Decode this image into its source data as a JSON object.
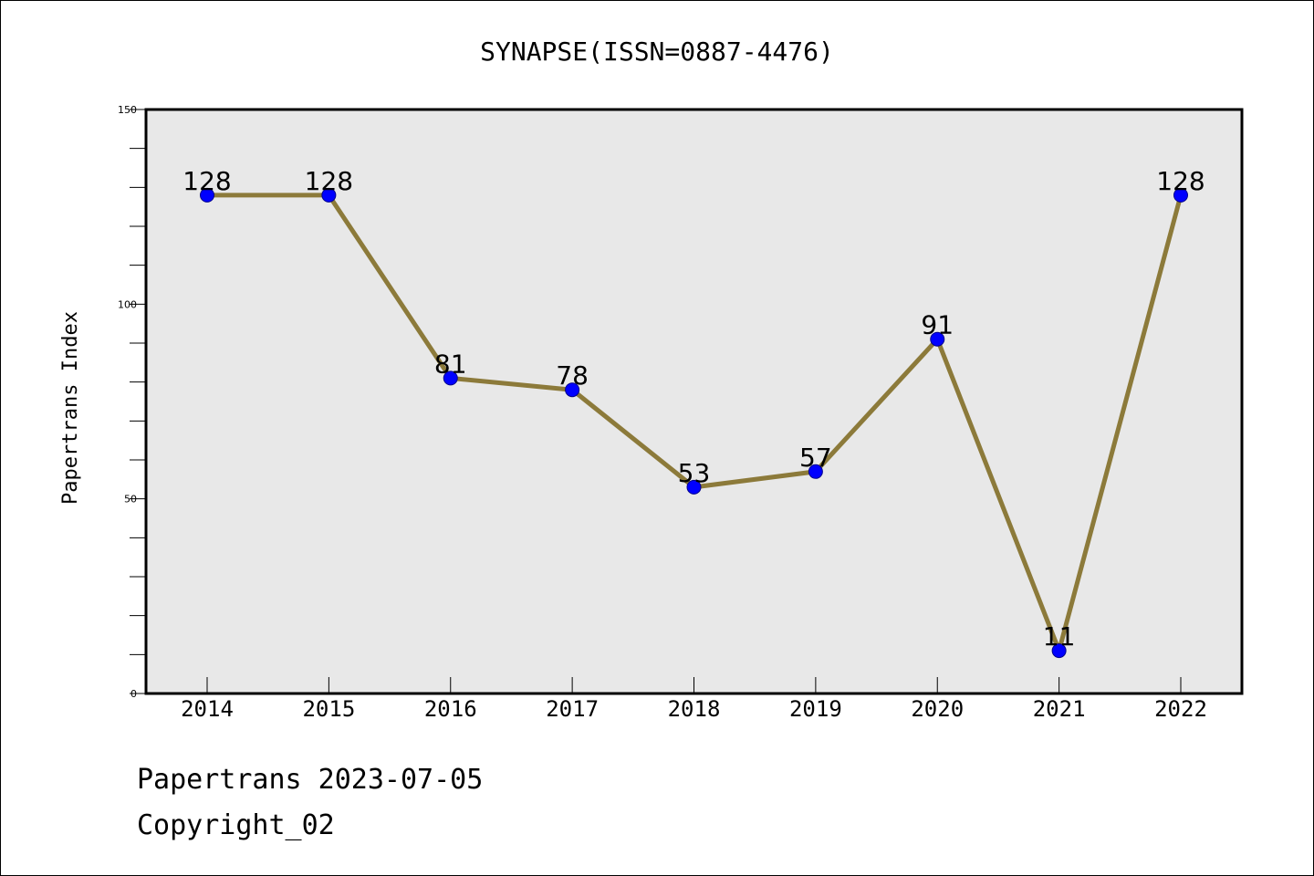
{
  "chart_data": {
    "type": "line",
    "title": "SYNAPSE(ISSN=0887-4476)",
    "xlabel": "",
    "ylabel": "Papertrans Index",
    "categories": [
      "2014",
      "2015",
      "2016",
      "2017",
      "2018",
      "2019",
      "2020",
      "2021",
      "2022"
    ],
    "series": [
      {
        "values": [
          128,
          128,
          81,
          78,
          53,
          57,
          91,
          11,
          128
        ]
      }
    ],
    "ylim": [
      0,
      150
    ],
    "y_ticks": [
      "0",
      "50",
      "100",
      "150"
    ],
    "grid": false,
    "legend": "none",
    "colors": {
      "line": "#8c7a3a",
      "marker": "#0000ff",
      "plot_background": "#e8e8e8"
    }
  },
  "footer": {
    "line1": "Papertrans 2023-07-05",
    "line2": "Copyright_02"
  }
}
